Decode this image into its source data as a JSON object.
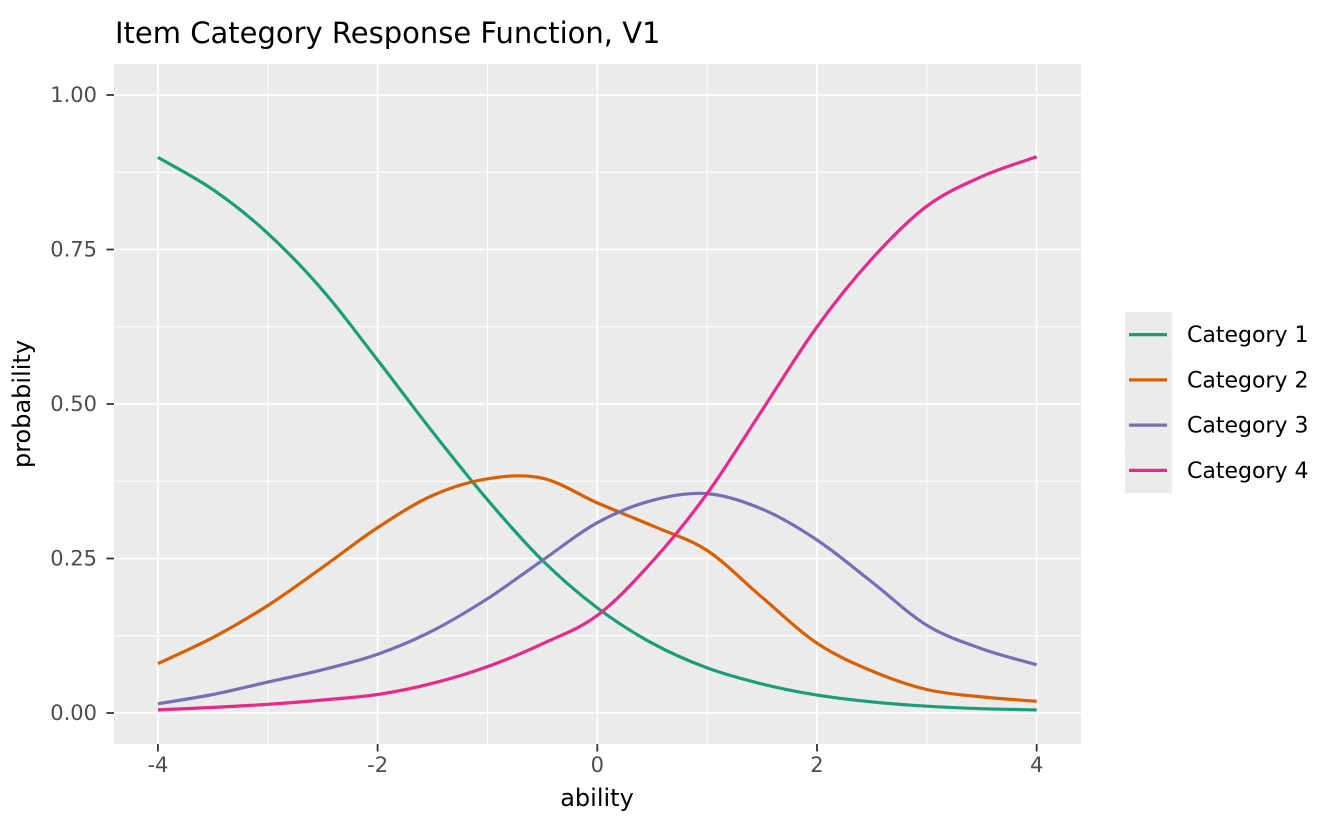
{
  "title": "Item Category Response Function, V1",
  "x_axis": {
    "label": "ability",
    "tick_labels": [
      "-4",
      "-2",
      "0",
      "2",
      "4"
    ],
    "tick_values": [
      -4,
      -2,
      0,
      2,
      4
    ],
    "minor_values": [
      -3,
      -1,
      1,
      3
    ]
  },
  "y_axis": {
    "label": "probability",
    "tick_labels": [
      "0.00",
      "0.25",
      "0.50",
      "0.75",
      "1.00"
    ],
    "tick_values": [
      0,
      0.25,
      0.5,
      0.75,
      1.0
    ],
    "minor_values": [
      0.125,
      0.375,
      0.625,
      0.875
    ]
  },
  "legend": {
    "entries": [
      {
        "label": "Category 1",
        "color": "#1B9E77"
      },
      {
        "label": "Category 2",
        "color": "#D95F02"
      },
      {
        "label": "Category 3",
        "color": "#7570B3"
      },
      {
        "label": "Category 4",
        "color": "#E7298A"
      }
    ]
  },
  "chart_data": {
    "type": "line",
    "title": "Item Category Response Function, V1",
    "xlabel": "ability",
    "ylabel": "probability",
    "xlim": [
      -4,
      4
    ],
    "ylim": [
      0,
      1
    ],
    "grid": "white major and minor gridlines on grey panel",
    "legend_position": "right",
    "x": [
      -4,
      -3.5,
      -3,
      -2.5,
      -2,
      -1.5,
      -1,
      -0.5,
      0,
      0.5,
      1,
      1.5,
      2,
      2.5,
      3,
      3.5,
      4
    ],
    "series": [
      {
        "name": "Category 1",
        "color": "#1B9E77",
        "values": [
          0.899,
          0.847,
          0.776,
          0.684,
          0.571,
          0.455,
          0.345,
          0.247,
          0.17,
          0.113,
          0.073,
          0.047,
          0.029,
          0.018,
          0.011,
          0.007,
          0.005
        ]
      },
      {
        "name": "Category 2",
        "color": "#D95F02",
        "values": [
          0.08,
          0.122,
          0.174,
          0.236,
          0.3,
          0.352,
          0.379,
          0.38,
          0.34,
          0.303,
          0.263,
          0.187,
          0.113,
          0.068,
          0.038,
          0.026,
          0.019
        ]
      },
      {
        "name": "Category 3",
        "color": "#7570B3",
        "values": [
          0.015,
          0.03,
          0.05,
          0.07,
          0.095,
          0.133,
          0.185,
          0.247,
          0.308,
          0.344,
          0.355,
          0.33,
          0.28,
          0.212,
          0.142,
          0.104,
          0.078
        ]
      },
      {
        "name": "Category 4",
        "color": "#E7298A",
        "values": [
          0.005,
          0.009,
          0.014,
          0.021,
          0.03,
          0.048,
          0.075,
          0.112,
          0.158,
          0.245,
          0.355,
          0.49,
          0.625,
          0.735,
          0.82,
          0.868,
          0.9
        ]
      }
    ]
  },
  "style": {
    "background": "#FFFFFF",
    "panel_fill": "#EBEBEB",
    "grid_color": "#FFFFFF",
    "tick_color": "#333333",
    "tick_label_color": "#4D4D4D",
    "text_color": "#000000",
    "legend_key_fill": "#EBEBEB"
  }
}
